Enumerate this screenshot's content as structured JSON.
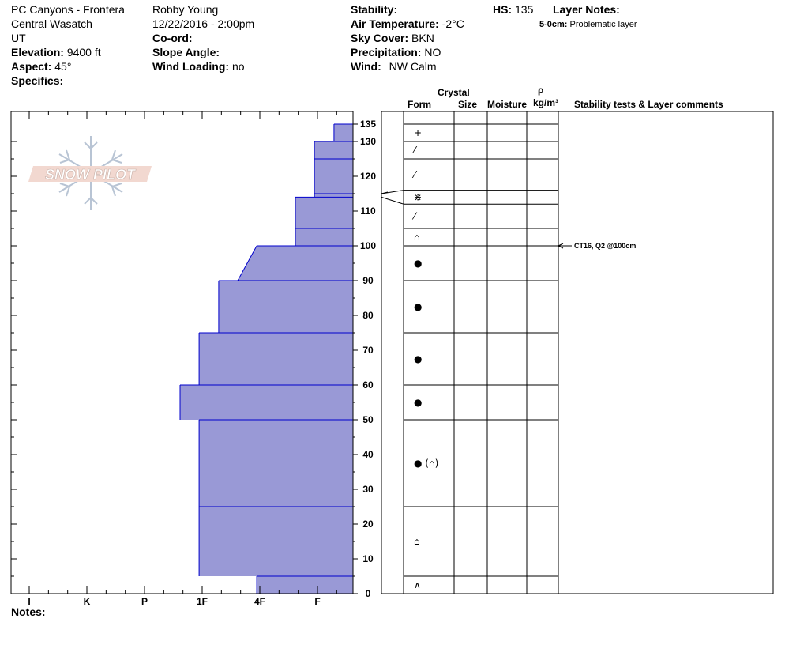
{
  "header": {
    "location": "PC Canyons - Frontera",
    "range": "Central Wasatch",
    "state": "UT",
    "elevation_label": "Elevation:",
    "elevation_value": "9400 ft",
    "aspect_label": "Aspect:",
    "aspect_value": "45°",
    "specifics_label": "Specifics:",
    "observer": "Robby Young",
    "datetime": "12/22/2016 - 2:00pm",
    "coord_label": "Co-ord:",
    "slope_label": "Slope Angle:",
    "wind_loading_label": "Wind Loading:",
    "wind_loading_value": "no",
    "stability_label": "Stability:",
    "air_temp_label": "Air Temperature:",
    "air_temp_value": "-2°C",
    "sky_label": "Sky Cover:",
    "sky_value": "BKN",
    "precip_label": "Precipitation:",
    "precip_value": "NO",
    "wind_label": "Wind:",
    "wind_value": "NW Calm",
    "hs_label": "HS:",
    "hs_value": "135",
    "layer_notes_label": "Layer Notes:",
    "layer_note_depth": "5-0cm:",
    "layer_note_text": "Problematic layer"
  },
  "columns": {
    "crystal": "Crystal",
    "form": "Form",
    "size": "Size",
    "moisture": "Moisture",
    "rho": "ρ",
    "density_unit": "kg/m³",
    "comments": "Stability tests & Layer comments"
  },
  "notes_label": "Notes:",
  "logo_text": "SNOW PILOT",
  "colors": {
    "hardness_fill": "#9999d6",
    "layer_line": "#0000cc",
    "grid": "#000000"
  },
  "chart_data": {
    "type": "bar",
    "orientation": "horizontal",
    "y_axis": {
      "label": "",
      "range": [
        0,
        135
      ],
      "ticks": [
        0,
        10,
        20,
        30,
        40,
        50,
        60,
        70,
        80,
        90,
        100,
        110,
        120,
        130,
        135
      ]
    },
    "x_axis": {
      "label": "",
      "categories": [
        "I",
        "K",
        "P",
        "1F",
        "4F",
        "F"
      ],
      "direction": "decreasing-right"
    },
    "hardness_scale_values": {
      "I": 6,
      "K": 5,
      "P": 4,
      "1F": 3,
      "4F": 2,
      "F": 1,
      "4F-": 1.67,
      "F+": 1.33,
      "1F-": 2.67,
      "1F+": 3.33
    },
    "layers": [
      {
        "top": 135,
        "bottom": 130,
        "hardness_top": 0.33,
        "hardness_bottom": 0.33
      },
      {
        "top": 130,
        "bottom": 125,
        "hardness_top": 0.67,
        "hardness_bottom": 0.67
      },
      {
        "top": 125,
        "bottom": 115,
        "hardness_top": 0.67,
        "hardness_bottom": 0.67
      },
      {
        "top": 115,
        "bottom": 114,
        "hardness_top": 0.67,
        "hardness_bottom": 0.67
      },
      {
        "top": 114,
        "bottom": 105,
        "hardness_top": 1.0,
        "hardness_bottom": 1.0
      },
      {
        "top": 105,
        "bottom": 100,
        "hardness_top": 1.0,
        "hardness_bottom": 1.0
      },
      {
        "top": 100,
        "bottom": 90,
        "hardness_top": 1.67,
        "hardness_bottom": 2.0
      },
      {
        "top": 90,
        "bottom": 75,
        "hardness_top": 2.33,
        "hardness_bottom": 2.33
      },
      {
        "top": 75,
        "bottom": 60,
        "hardness_top": 2.67,
        "hardness_bottom": 2.67
      },
      {
        "top": 60,
        "bottom": 50,
        "hardness_top": 3.0,
        "hardness_bottom": 3.0
      },
      {
        "top": 50,
        "bottom": 25,
        "hardness_top": 2.67,
        "hardness_bottom": 2.67
      },
      {
        "top": 25,
        "bottom": 5,
        "hardness_top": 2.67,
        "hardness_bottom": 2.67
      },
      {
        "top": 5,
        "bottom": 0,
        "hardness_top": 1.67,
        "hardness_bottom": 1.67
      }
    ],
    "form_boundaries": [
      135,
      130,
      125,
      116,
      112,
      105,
      100,
      90,
      75,
      60,
      50,
      25,
      5,
      0
    ],
    "forms": [
      {
        "depth": 132.5,
        "glyph": "+"
      },
      {
        "depth": 127.5,
        "glyph": "⁄"
      },
      {
        "depth": 120.5,
        "glyph": "⁄"
      },
      {
        "depth": 114,
        "glyph": "⋇"
      },
      {
        "depth": 108.5,
        "glyph": "⁄"
      },
      {
        "depth": 102.5,
        "glyph": "⌂"
      },
      {
        "depth": 95,
        "glyph": "●"
      },
      {
        "depth": 82.5,
        "glyph": "●"
      },
      {
        "depth": 67.5,
        "glyph": "●"
      },
      {
        "depth": 55,
        "glyph": "●"
      },
      {
        "depth": 37.5,
        "glyph": "● (⌂)"
      },
      {
        "depth": 15,
        "glyph": "⌂"
      },
      {
        "depth": 2.5,
        "glyph": "∧"
      }
    ],
    "comments": [
      {
        "depth": 100,
        "text": "CT16, Q2 @100cm"
      }
    ]
  }
}
